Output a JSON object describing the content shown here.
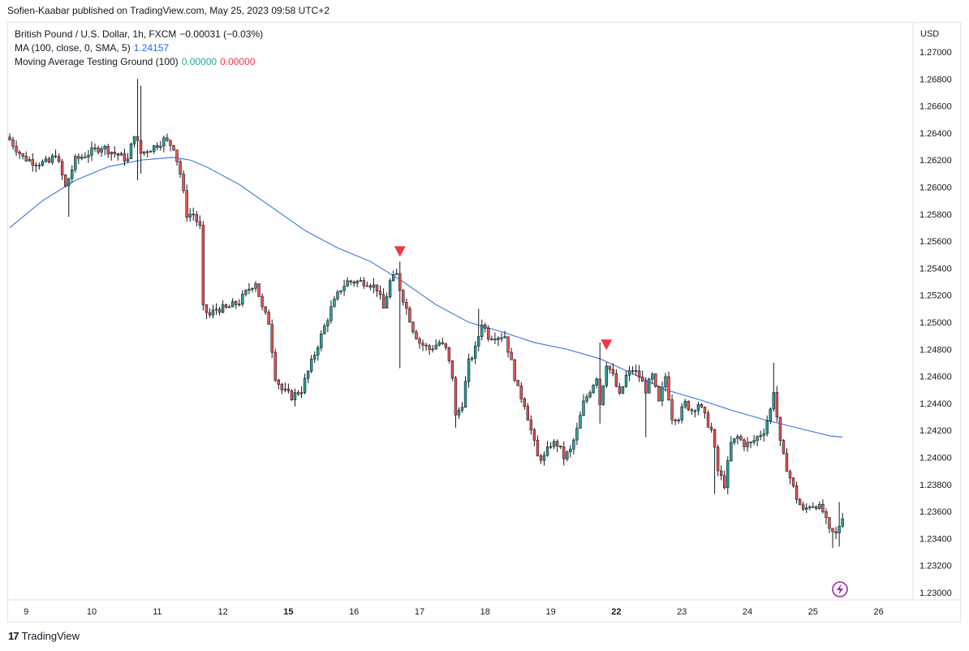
{
  "header": {
    "published": "Sofien-Kaabar published on TradingView.com, May 25, 2023 09:58 UTC+2"
  },
  "legend": {
    "symbol_line": "British Pound / U.S. Dollar, 1h, FXCM",
    "symbol_change": "−0.00031 (−0.03%)",
    "ma_line": "MA (100, close, 0, SMA, 5)",
    "ma_value": "1.24157",
    "indicator_line": "Moving Average Testing Ground (100)",
    "indicator_value_1": "0.00000",
    "indicator_value_2": "0.00000"
  },
  "footer": {
    "brand": "TradingView",
    "brand_mark": "17"
  },
  "colors": {
    "candle_up": "#26a69a",
    "candle_down": "#ef5350",
    "candle_wick": "#131722",
    "ma_line": "#4a7fe0",
    "signal": "#f23645",
    "replay_icon": "#9c27b0",
    "grid": "#f0f3fa"
  },
  "icons": {
    "replay": "lightning-bolt-icon",
    "signal": "down-triangle-icon"
  },
  "chart_data": {
    "type": "candlestick",
    "title": "British Pound / U.S. Dollar, 1h, FXCM",
    "currency_label": "USD",
    "ylim": [
      1.2296,
      1.2719
    ],
    "y_ticks": [
      "1.27000",
      "1.26800",
      "1.26600",
      "1.26400",
      "1.26200",
      "1.26000",
      "1.25800",
      "1.25600",
      "1.25400",
      "1.25200",
      "1.25000",
      "1.24800",
      "1.24600",
      "1.24400",
      "1.24200",
      "1.24000",
      "1.23800",
      "1.23600",
      "1.23400",
      "1.23200",
      "1.23000"
    ],
    "x_ticks": [
      {
        "label": "9",
        "bar": 5,
        "bold": false
      },
      {
        "label": "10",
        "bar": 25,
        "bold": false
      },
      {
        "label": "11",
        "bar": 45,
        "bold": false
      },
      {
        "label": "12",
        "bar": 65,
        "bold": false
      },
      {
        "label": "15",
        "bar": 85,
        "bold": true
      },
      {
        "label": "16",
        "bar": 105,
        "bold": false
      },
      {
        "label": "17",
        "bar": 125,
        "bold": false
      },
      {
        "label": "18",
        "bar": 145,
        "bold": false
      },
      {
        "label": "19",
        "bar": 165,
        "bold": false
      },
      {
        "label": "22",
        "bar": 185,
        "bold": true
      },
      {
        "label": "23",
        "bar": 205,
        "bold": false
      },
      {
        "label": "24",
        "bar": 225,
        "bold": false
      },
      {
        "label": "25",
        "bar": 245,
        "bold": false
      },
      {
        "label": "26",
        "bar": 265,
        "bold": false
      }
    ],
    "close_anchors": [
      [
        0,
        1.2635
      ],
      [
        4,
        1.2622
      ],
      [
        8,
        1.2618
      ],
      [
        12,
        1.2618
      ],
      [
        14,
        1.2625
      ],
      [
        17,
        1.26
      ],
      [
        20,
        1.262
      ],
      [
        24,
        1.2625
      ],
      [
        28,
        1.263
      ],
      [
        32,
        1.2625
      ],
      [
        36,
        1.262
      ],
      [
        38,
        1.264
      ],
      [
        40,
        1.2625
      ],
      [
        44,
        1.263
      ],
      [
        47,
        1.2635
      ],
      [
        50,
        1.263
      ],
      [
        52,
        1.261
      ],
      [
        54,
        1.258
      ],
      [
        56,
        1.258
      ],
      [
        58,
        1.257
      ],
      [
        59,
        1.251
      ],
      [
        61,
        1.2505
      ],
      [
        63,
        1.251
      ],
      [
        66,
        1.251
      ],
      [
        70,
        1.2515
      ],
      [
        73,
        1.2525
      ],
      [
        75,
        1.253
      ],
      [
        77,
        1.251
      ],
      [
        79,
        1.25
      ],
      [
        81,
        1.246
      ],
      [
        83,
        1.245
      ],
      [
        86,
        1.2445
      ],
      [
        89,
        1.245
      ],
      [
        92,
        1.247
      ],
      [
        95,
        1.249
      ],
      [
        98,
        1.251
      ],
      [
        101,
        1.2525
      ],
      [
        103,
        1.253
      ],
      [
        106,
        1.253
      ],
      [
        109,
        1.253
      ],
      [
        112,
        1.2525
      ],
      [
        114,
        1.251
      ],
      [
        116,
        1.253
      ],
      [
        118,
        1.2535
      ],
      [
        119,
        1.2525
      ],
      [
        121,
        1.251
      ],
      [
        123,
        1.2495
      ],
      [
        125,
        1.2485
      ],
      [
        128,
        1.248
      ],
      [
        131,
        1.2485
      ],
      [
        133,
        1.248
      ],
      [
        135,
        1.246
      ],
      [
        136,
        1.243
      ],
      [
        138,
        1.244
      ],
      [
        140,
        1.247
      ],
      [
        142,
        1.248
      ],
      [
        144,
        1.25
      ],
      [
        146,
        1.249
      ],
      [
        149,
        1.249
      ],
      [
        151,
        1.249
      ],
      [
        153,
        1.247
      ],
      [
        155,
        1.245
      ],
      [
        157,
        1.244
      ],
      [
        159,
        1.242
      ],
      [
        161,
        1.24
      ],
      [
        163,
        1.24
      ],
      [
        165,
        1.241
      ],
      [
        167,
        1.241
      ],
      [
        169,
        1.24
      ],
      [
        171,
        1.2405
      ],
      [
        173,
        1.242
      ],
      [
        175,
        1.244
      ],
      [
        177,
        1.245
      ],
      [
        179,
        1.246
      ],
      [
        180,
        1.244
      ],
      [
        182,
        1.247
      ],
      [
        184,
        1.246
      ],
      [
        186,
        1.2445
      ],
      [
        188,
        1.246
      ],
      [
        190,
        1.2465
      ],
      [
        192,
        1.246
      ],
      [
        194,
        1.245
      ],
      [
        196,
        1.246
      ],
      [
        198,
        1.244
      ],
      [
        200,
        1.246
      ],
      [
        202,
        1.243
      ],
      [
        204,
        1.243
      ],
      [
        206,
        1.244
      ],
      [
        208,
        1.2435
      ],
      [
        210,
        1.244
      ],
      [
        212,
        1.243
      ],
      [
        214,
        1.242
      ],
      [
        216,
        1.239
      ],
      [
        218,
        1.238
      ],
      [
        220,
        1.241
      ],
      [
        222,
        1.2415
      ],
      [
        224,
        1.241
      ],
      [
        226,
        1.241
      ],
      [
        228,
        1.2415
      ],
      [
        230,
        1.242
      ],
      [
        232,
        1.2435
      ],
      [
        233,
        1.245
      ],
      [
        234,
        1.243
      ],
      [
        235,
        1.241
      ],
      [
        236,
        1.24
      ],
      [
        238,
        1.2385
      ],
      [
        240,
        1.237
      ],
      [
        242,
        1.236
      ],
      [
        244,
        1.2365
      ],
      [
        246,
        1.2365
      ],
      [
        248,
        1.236
      ],
      [
        250,
        1.2345
      ],
      [
        252,
        1.2343
      ],
      [
        254,
        1.2357
      ]
    ],
    "spikes": [
      {
        "bar": 39,
        "high": 1.268,
        "low": 1.2605
      },
      {
        "bar": 40,
        "high": 1.2675,
        "low": 1.261
      },
      {
        "bar": 18,
        "low": 1.2578
      },
      {
        "bar": 119,
        "high": 1.2545,
        "low": 1.2466
      },
      {
        "bar": 136,
        "low": 1.2422
      },
      {
        "bar": 143,
        "high": 1.251
      },
      {
        "bar": 180,
        "high": 1.2485,
        "low": 1.2425
      },
      {
        "bar": 194,
        "low": 1.2415
      },
      {
        "bar": 233,
        "high": 1.247
      },
      {
        "bar": 215,
        "low": 1.2373
      },
      {
        "bar": 251,
        "low": 1.2333
      },
      {
        "bar": 253,
        "high": 1.2367,
        "low": 1.2334
      }
    ],
    "ma_series": [
      [
        0,
        1.257
      ],
      [
        10,
        1.259
      ],
      [
        20,
        1.2605
      ],
      [
        30,
        1.2615
      ],
      [
        40,
        1.262
      ],
      [
        50,
        1.2622
      ],
      [
        55,
        1.262
      ],
      [
        60,
        1.2615
      ],
      [
        70,
        1.2602
      ],
      [
        80,
        1.2585
      ],
      [
        90,
        1.2568
      ],
      [
        100,
        1.2555
      ],
      [
        110,
        1.2545
      ],
      [
        120,
        1.253
      ],
      [
        130,
        1.2513
      ],
      [
        140,
        1.25
      ],
      [
        150,
        1.2493
      ],
      [
        160,
        1.2485
      ],
      [
        170,
        1.248
      ],
      [
        180,
        1.2473
      ],
      [
        190,
        1.2462
      ],
      [
        200,
        1.245
      ],
      [
        210,
        1.2443
      ],
      [
        220,
        1.2435
      ],
      [
        230,
        1.2428
      ],
      [
        240,
        1.2422
      ],
      [
        250,
        1.2416
      ],
      [
        254,
        1.2415
      ]
    ],
    "signals": [
      {
        "bar": 119,
        "price": 1.2552,
        "shape": "down-triangle"
      },
      {
        "bar": 182,
        "price": 1.2483,
        "shape": "down-triangle"
      }
    ],
    "bar_count": 255,
    "grid": false
  }
}
